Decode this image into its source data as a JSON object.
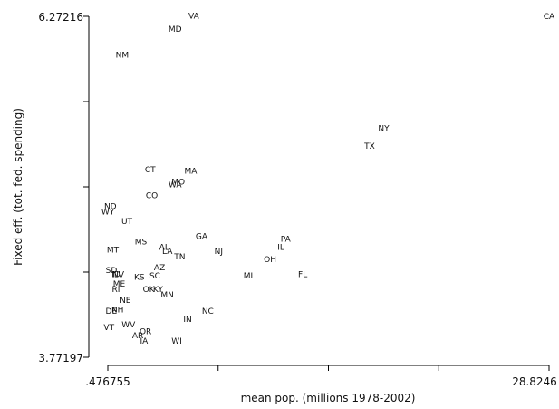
{
  "chart_data": {
    "type": "scatter",
    "marker": "state-abbreviation-label",
    "xlabel": "mean pop. (millions 1978-2002)",
    "ylabel": "Fixed eff. (tot. fed. spending)",
    "xlim": [
      0.476755,
      28.8246
    ],
    "ylim": [
      3.77197,
      6.27216
    ],
    "x_tick_labels": [
      ".476755",
      "28.8246"
    ],
    "y_tick_labels": [
      "3.77197",
      "6.27216"
    ],
    "x_ticks": [
      0.476755,
      7.563716,
      14.650678,
      21.737639,
      28.8246
    ],
    "y_ticks": [
      3.77197,
      4.397,
      5.0221,
      5.6472,
      6.27216
    ],
    "grid": false,
    "points": [
      {
        "label": "CA",
        "x": 28.82,
        "y": 6.272
      },
      {
        "label": "VA",
        "x": 6.0,
        "y": 6.277
      },
      {
        "label": "MD",
        "x": 4.8,
        "y": 6.18
      },
      {
        "label": "NM",
        "x": 1.4,
        "y": 5.99
      },
      {
        "label": "NY",
        "x": 18.2,
        "y": 5.45
      },
      {
        "label": "TX",
        "x": 17.3,
        "y": 5.32
      },
      {
        "label": "CT",
        "x": 3.2,
        "y": 5.15
      },
      {
        "label": "MA",
        "x": 5.8,
        "y": 5.14
      },
      {
        "label": "MO",
        "x": 5.0,
        "y": 5.06
      },
      {
        "label": "WA",
        "x": 4.8,
        "y": 5.04
      },
      {
        "label": "CO",
        "x": 3.3,
        "y": 4.96
      },
      {
        "label": "ND",
        "x": 0.64,
        "y": 4.88
      },
      {
        "label": "WY",
        "x": 0.48,
        "y": 4.84
      },
      {
        "label": "UT",
        "x": 1.7,
        "y": 4.77
      },
      {
        "label": "GA",
        "x": 6.5,
        "y": 4.66
      },
      {
        "label": "PA",
        "x": 11.9,
        "y": 4.64
      },
      {
        "label": "MS",
        "x": 2.6,
        "y": 4.62
      },
      {
        "label": "IL",
        "x": 11.6,
        "y": 4.58
      },
      {
        "label": "AL",
        "x": 4.1,
        "y": 4.58
      },
      {
        "label": "MT",
        "x": 0.8,
        "y": 4.56
      },
      {
        "label": "LA",
        "x": 4.3,
        "y": 4.55
      },
      {
        "label": "NJ",
        "x": 7.6,
        "y": 4.55
      },
      {
        "label": "TN",
        "x": 5.1,
        "y": 4.51
      },
      {
        "label": "OH",
        "x": 10.9,
        "y": 4.49
      },
      {
        "label": "AZ",
        "x": 3.8,
        "y": 4.43
      },
      {
        "label": "SD",
        "x": 0.71,
        "y": 4.41
      },
      {
        "label": "NV",
        "x": 1.15,
        "y": 4.38
      },
      {
        "label": "ID",
        "x": 1.0,
        "y": 4.38
      },
      {
        "label": "FL",
        "x": 13.0,
        "y": 4.38
      },
      {
        "label": "MI",
        "x": 9.5,
        "y": 4.37
      },
      {
        "label": "SC",
        "x": 3.5,
        "y": 4.37
      },
      {
        "label": "KS",
        "x": 2.5,
        "y": 4.36
      },
      {
        "label": "ME",
        "x": 1.2,
        "y": 4.31
      },
      {
        "label": "OK",
        "x": 3.1,
        "y": 4.27
      },
      {
        "label": "KY",
        "x": 3.7,
        "y": 4.27
      },
      {
        "label": "RI",
        "x": 1.0,
        "y": 4.27
      },
      {
        "label": "MN",
        "x": 4.3,
        "y": 4.23
      },
      {
        "label": "NE",
        "x": 1.6,
        "y": 4.19
      },
      {
        "label": "NH",
        "x": 1.1,
        "y": 4.12
      },
      {
        "label": "DE",
        "x": 0.7,
        "y": 4.11
      },
      {
        "label": "NC",
        "x": 6.9,
        "y": 4.11
      },
      {
        "label": "IN",
        "x": 5.6,
        "y": 4.05
      },
      {
        "label": "WV",
        "x": 1.8,
        "y": 4.01
      },
      {
        "label": "VT",
        "x": 0.55,
        "y": 3.99
      },
      {
        "label": "OR",
        "x": 2.9,
        "y": 3.96
      },
      {
        "label": "AR",
        "x": 2.4,
        "y": 3.93
      },
      {
        "label": "IA",
        "x": 2.8,
        "y": 3.89
      },
      {
        "label": "WI",
        "x": 4.9,
        "y": 3.89
      }
    ]
  }
}
